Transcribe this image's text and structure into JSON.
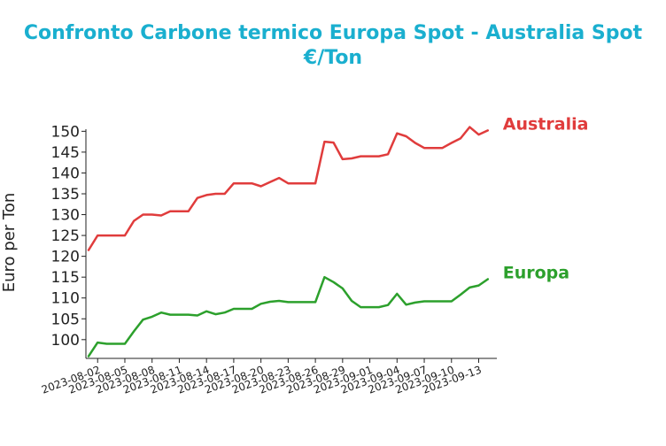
{
  "chart_data": {
    "type": "line",
    "title": "Confronto Carbone termico Europa Spot - Australia Spot €/Ton",
    "y_label": "Euro per Ton",
    "x": [
      "2023-08-01",
      "2023-08-02",
      "2023-08-03",
      "2023-08-04",
      "2023-08-05",
      "2023-08-06",
      "2023-08-07",
      "2023-08-08",
      "2023-08-09",
      "2023-08-10",
      "2023-08-11",
      "2023-08-12",
      "2023-08-13",
      "2023-08-14",
      "2023-08-15",
      "2023-08-16",
      "2023-08-17",
      "2023-08-18",
      "2023-08-19",
      "2023-08-20",
      "2023-08-21",
      "2023-08-22",
      "2023-08-23",
      "2023-08-24",
      "2023-08-25",
      "2023-08-26",
      "2023-08-27",
      "2023-08-28",
      "2023-08-29",
      "2023-08-30",
      "2023-08-31",
      "2023-09-01",
      "2023-09-02",
      "2023-09-03",
      "2023-09-04",
      "2023-09-05",
      "2023-09-06",
      "2023-09-07",
      "2023-09-08",
      "2023-09-09",
      "2023-09-10",
      "2023-09-11",
      "2023-09-12",
      "2023-09-13",
      "2023-09-14"
    ],
    "series": [
      {
        "name": "Australia",
        "color": "#e03c3c",
        "values": [
          121.5,
          125,
          125,
          125,
          125,
          128.5,
          130,
          130,
          129.8,
          130.8,
          130.8,
          130.8,
          134,
          134.7,
          135,
          135,
          137.5,
          137.5,
          137.5,
          136.8,
          137.8,
          138.8,
          137.5,
          137.5,
          137.5,
          137.5,
          147.5,
          147.3,
          143.3,
          143.5,
          144,
          144,
          144,
          144.5,
          149.5,
          148.8,
          147.2,
          146,
          146,
          146,
          147.2,
          148.3,
          151,
          149.2,
          150.2
        ]
      },
      {
        "name": "Europa",
        "color": "#2ca02c",
        "values": [
          96,
          99.3,
          99,
          99,
          99,
          102,
          104.8,
          105.5,
          106.5,
          106,
          106,
          106,
          105.8,
          106.8,
          106.1,
          106.5,
          107.4,
          107.4,
          107.4,
          108.6,
          109.1,
          109.3,
          109,
          109,
          109,
          109,
          115,
          113.8,
          112.3,
          109.3,
          107.8,
          107.8,
          107.8,
          108.3,
          111,
          108.4,
          108.9,
          109.2,
          109.2,
          109.2,
          109.2,
          110.8,
          112.5,
          113,
          114.5
        ]
      }
    ],
    "xlim": [
      "2023-08-01",
      "2023-09-15"
    ],
    "xticks": [
      "2023-08-02",
      "2023-08-05",
      "2023-08-08",
      "2023-08-11",
      "2023-08-14",
      "2023-08-17",
      "2023-08-20",
      "2023-08-23",
      "2023-08-26",
      "2023-08-29",
      "2023-09-01",
      "2023-09-04",
      "2023-09-07",
      "2023-09-10",
      "2023-09-13"
    ],
    "ylim": [
      95.5,
      150.5
    ],
    "yticks": [
      100,
      105,
      110,
      115,
      120,
      125,
      130,
      135,
      140,
      145,
      150
    ],
    "grid": false
  }
}
